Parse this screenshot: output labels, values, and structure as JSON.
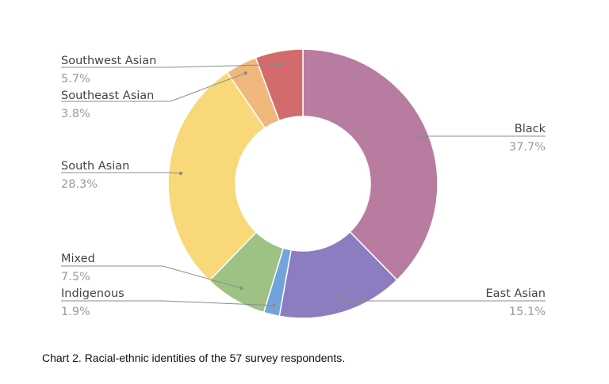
{
  "chart_data": {
    "type": "pie",
    "style": "donut",
    "categories": [
      "Black",
      "East Asian",
      "Indigenous",
      "Mixed",
      "South Asian",
      "Southeast Asian",
      "Southwest Asian"
    ],
    "values": [
      37.7,
      15.1,
      1.9,
      7.5,
      28.3,
      3.8,
      5.7
    ],
    "labels": [
      "37.7%",
      "15.1%",
      "1.9%",
      "7.5%",
      "28.3%",
      "3.8%",
      "5.7%"
    ],
    "colors": [
      "#b77c9f",
      "#8b7dbf",
      "#72a3da",
      "#9dc283",
      "#f8d878",
      "#f0b87c",
      "#d36b6c"
    ],
    "legend": "none",
    "data_labels": "outside with leader lines"
  },
  "caption": "Chart 2. Racial-ethnic identities of the 57 survey respondents."
}
